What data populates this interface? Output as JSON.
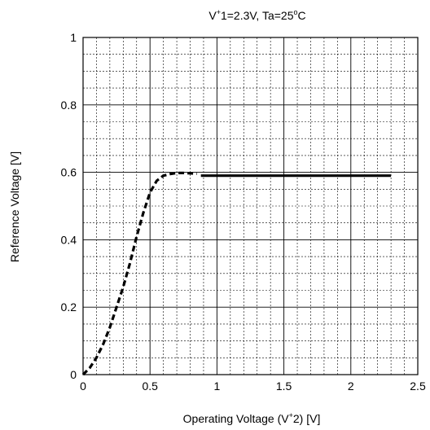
{
  "chart_data": {
    "type": "line",
    "title": {
      "v_prefix": "V",
      "v_sup": "+",
      "v_rest": "1=2.3V, Ta=25",
      "deg": "o",
      "tail": "C"
    },
    "xlabel": {
      "prefix": "Operating Voltage (V",
      "sup": "+",
      "suffix": "2) [V]"
    },
    "ylabel": "Reference Voltage [V]",
    "xlim": [
      0,
      2.5
    ],
    "ylim": [
      0,
      1
    ],
    "x_ticks": [
      "0",
      "0.5",
      "1",
      "1.5",
      "2",
      "2.5"
    ],
    "y_ticks": [
      "0",
      "0.2",
      "0.4",
      "0.6",
      "0.8",
      "1"
    ],
    "grid": true,
    "series": [
      {
        "style": "dashed",
        "x": [
          0.0,
          0.05,
          0.1,
          0.15,
          0.2,
          0.25,
          0.3,
          0.35,
          0.4,
          0.45,
          0.5,
          0.55,
          0.6,
          0.65,
          0.7,
          0.75,
          0.8,
          0.85
        ],
        "y": [
          0.0,
          0.02,
          0.05,
          0.09,
          0.14,
          0.2,
          0.26,
          0.33,
          0.41,
          0.48,
          0.54,
          0.575,
          0.59,
          0.595,
          0.598,
          0.598,
          0.597,
          0.596
        ]
      },
      {
        "style": "solid",
        "x": [
          0.88,
          2.3
        ],
        "y": [
          0.59,
          0.59
        ]
      }
    ]
  }
}
